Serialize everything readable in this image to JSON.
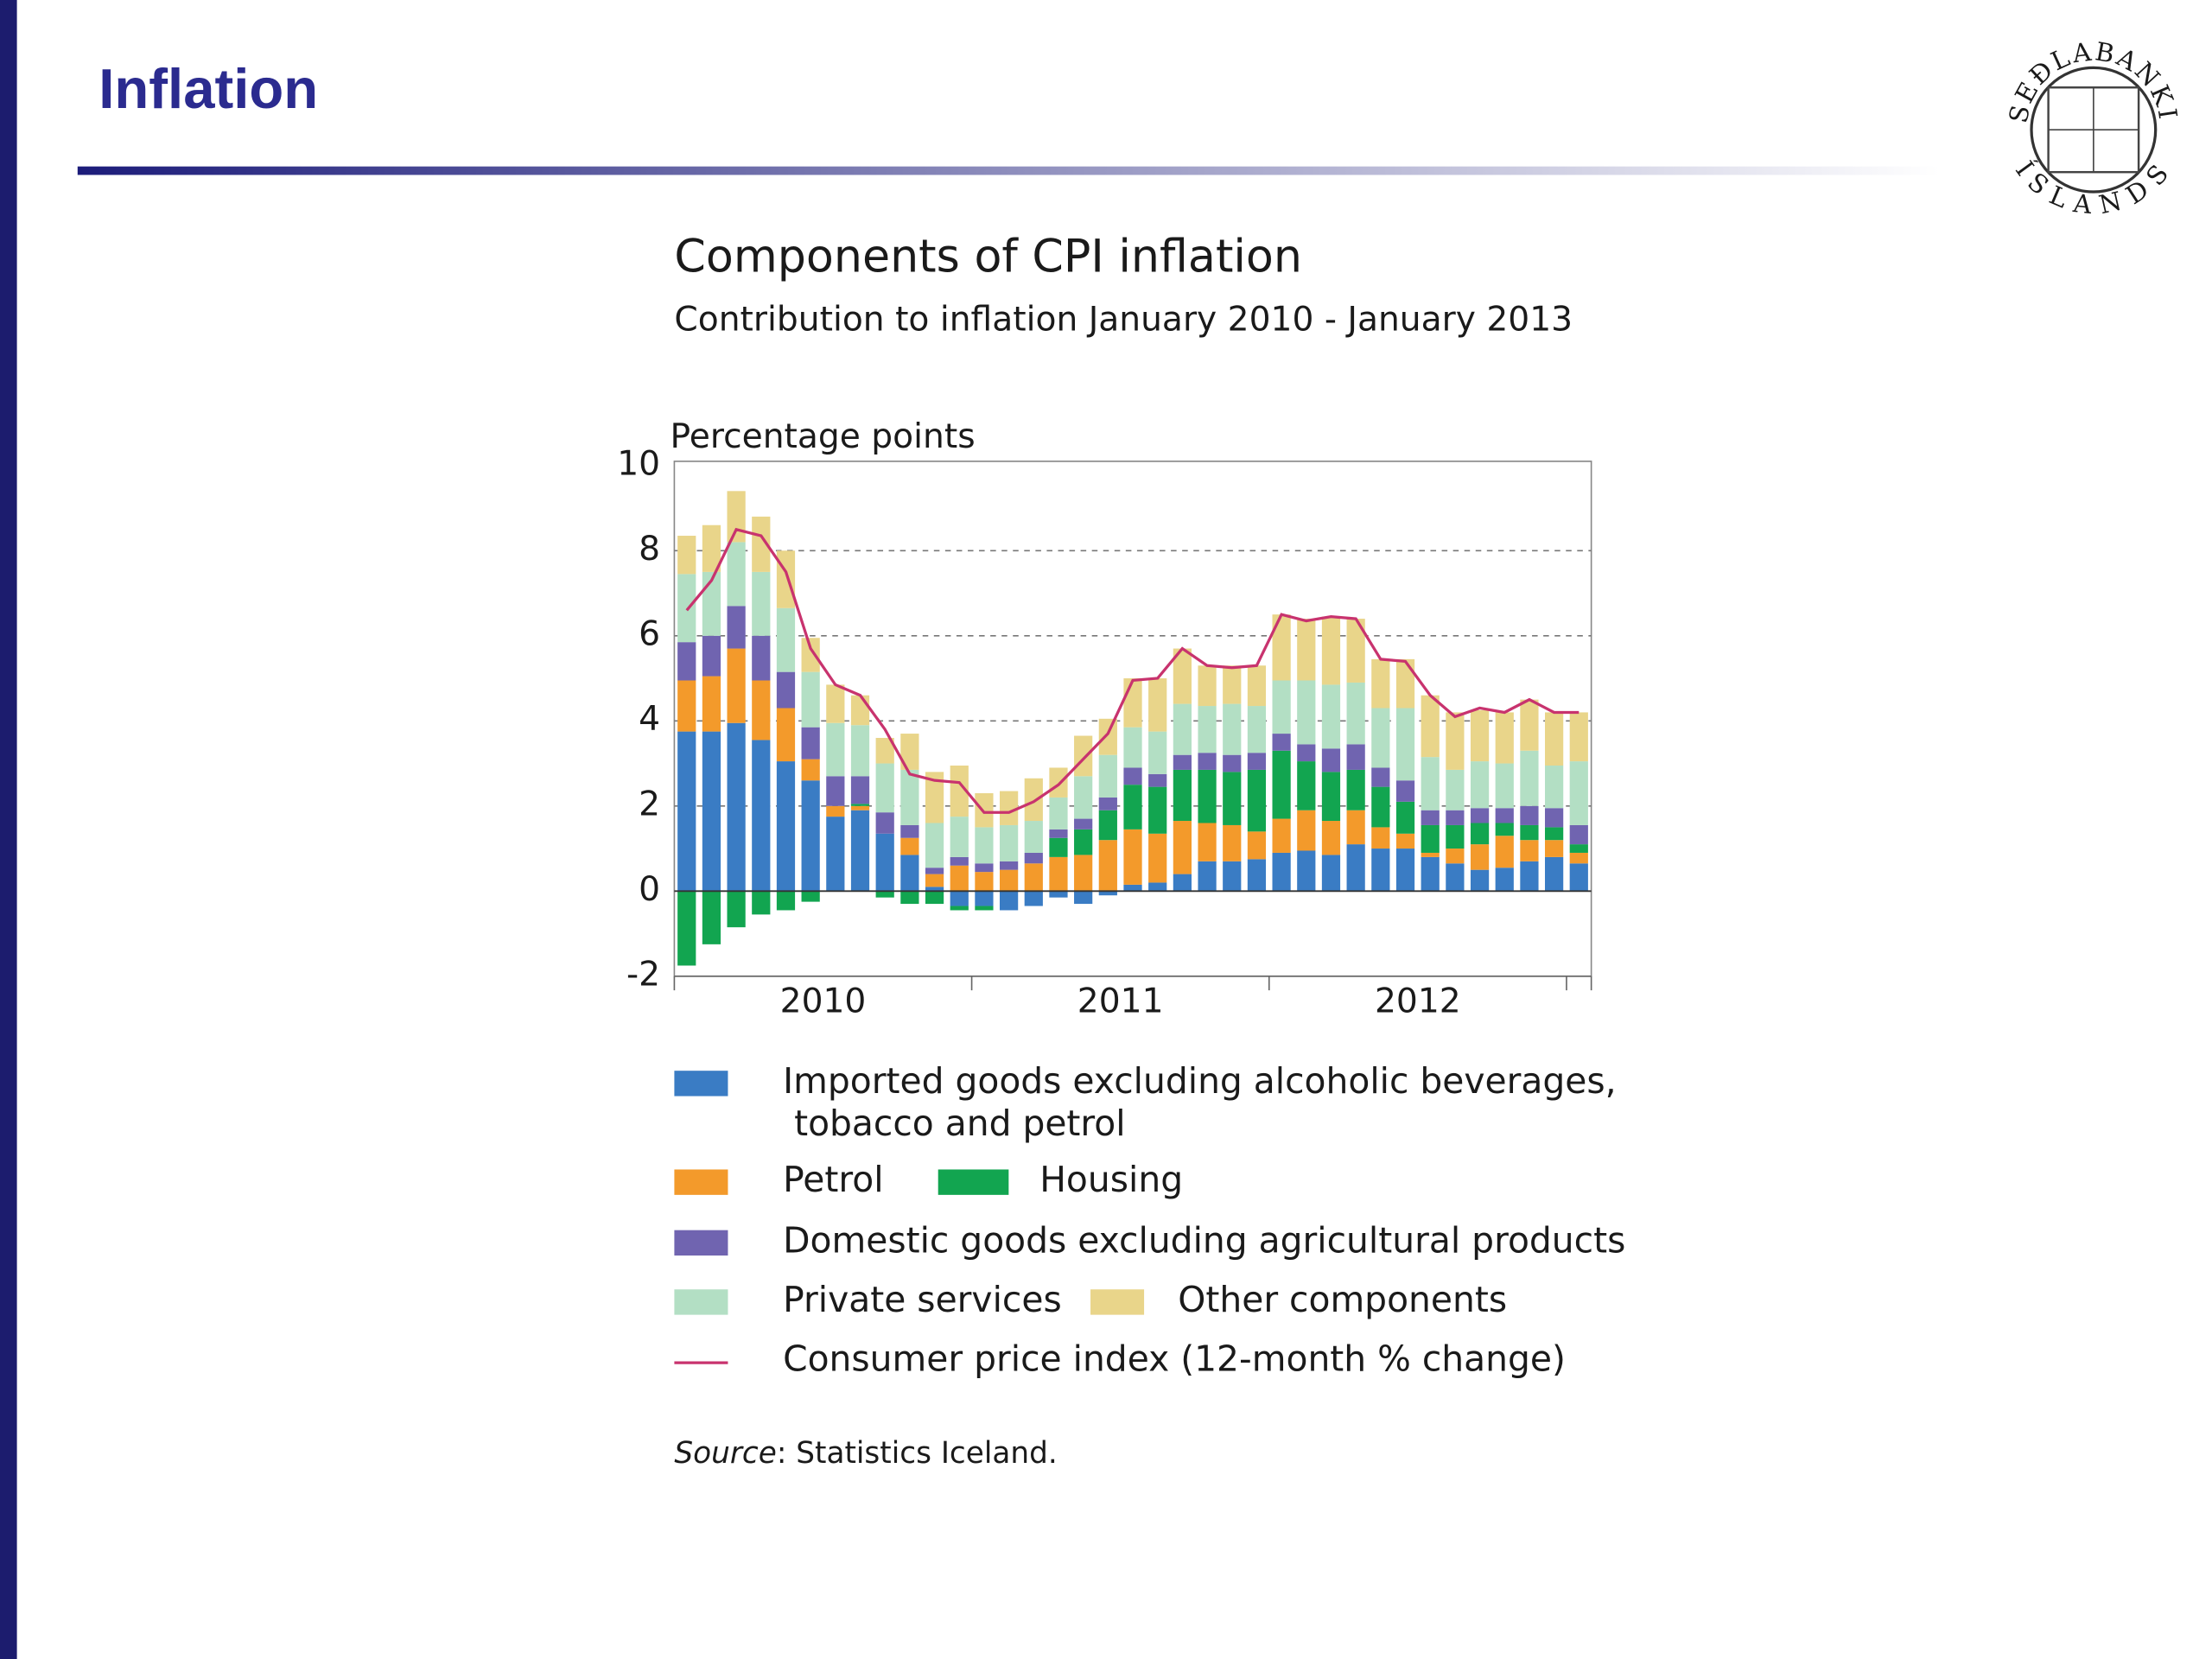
{
  "header": {
    "title": "Inflation",
    "logo_top": "SEÐLABANKI",
    "logo_bottom": "ÍSLANDS"
  },
  "chart_data": {
    "type": "bar",
    "stacked": true,
    "title": "Components of CPI inflation",
    "subtitle": "Contribution to inflation January 2010 - January 2013",
    "y_label": "Percentage points",
    "categories": [
      null,
      null,
      null,
      null,
      null,
      null,
      "2010",
      null,
      null,
      null,
      null,
      null,
      null,
      null,
      null,
      null,
      null,
      null,
      "2011",
      null,
      null,
      null,
      null,
      null,
      null,
      null,
      null,
      null,
      null,
      null,
      "2012",
      null,
      null,
      null,
      null,
      null,
      null
    ],
    "ylim": [
      -2,
      10
    ],
    "yticks": [
      -2,
      0,
      2,
      4,
      6,
      8,
      10
    ],
    "grid": true,
    "series": [
      {
        "name": "Imported goods excluding alcoholic beverages, tobacco and petrol",
        "color": "#3a7cc4",
        "values": [
          3.75,
          3.75,
          3.95,
          3.55,
          3.05,
          2.6,
          1.75,
          1.9,
          1.35,
          0.85,
          0.1,
          -0.35,
          -0.35,
          -0.45,
          -0.35,
          -0.15,
          -0.3,
          -0.1,
          0.15,
          0.2,
          0.4,
          0.7,
          0.7,
          0.75,
          0.9,
          0.95,
          0.85,
          1.1,
          1.0,
          1.0,
          0.8,
          0.65,
          0.5,
          0.55,
          0.7,
          0.8,
          0.65
        ]
      },
      {
        "name": "Petrol",
        "color": "#f39a2b",
        "values": [
          1.2,
          1.3,
          1.75,
          1.4,
          1.25,
          0.5,
          0.25,
          0.1,
          0.0,
          0.4,
          0.3,
          0.6,
          0.45,
          0.5,
          0.65,
          0.8,
          0.85,
          1.2,
          1.3,
          1.15,
          1.25,
          0.9,
          0.85,
          0.65,
          0.8,
          0.95,
          0.8,
          0.8,
          0.5,
          0.35,
          0.1,
          0.35,
          0.6,
          0.75,
          0.5,
          0.4,
          0.25
        ]
      },
      {
        "name": "Housing",
        "color": "#12a550",
        "values": [
          -1.75,
          -1.25,
          -0.85,
          -0.55,
          -0.45,
          -0.25,
          0,
          0.05,
          -0.15,
          -0.3,
          -0.3,
          -0.1,
          -0.1,
          0,
          0,
          0.45,
          0.6,
          0.7,
          1.05,
          1.1,
          1.2,
          1.25,
          1.25,
          1.45,
          1.6,
          1.15,
          1.15,
          0.95,
          0.95,
          0.75,
          0.65,
          0.55,
          0.5,
          0.3,
          0.35,
          0.3,
          0.2
        ]
      },
      {
        "name": "Domestic goods excluding agricultural products",
        "color": "#7064b0",
        "values": [
          0.9,
          0.95,
          1.0,
          1.05,
          0.85,
          0.75,
          0.7,
          0.65,
          0.5,
          0.3,
          0.15,
          0.2,
          0.2,
          0.2,
          0.25,
          0.2,
          0.25,
          0.3,
          0.4,
          0.3,
          0.35,
          0.4,
          0.4,
          0.4,
          0.4,
          0.4,
          0.55,
          0.6,
          0.45,
          0.5,
          0.35,
          0.35,
          0.35,
          0.35,
          0.45,
          0.45,
          0.45
        ]
      },
      {
        "name": "Private services",
        "color": "#b3dfc4",
        "values": [
          1.6,
          1.5,
          1.5,
          1.5,
          1.5,
          1.3,
          1.25,
          1.2,
          1.15,
          1.3,
          1.05,
          0.95,
          0.85,
          0.85,
          0.75,
          0.75,
          1.0,
          1.0,
          0.95,
          1.0,
          1.2,
          1.1,
          1.2,
          1.1,
          1.25,
          1.5,
          1.5,
          1.45,
          1.4,
          1.7,
          1.25,
          0.95,
          1.1,
          1.05,
          1.3,
          1.0,
          1.5
        ]
      },
      {
        "name": "Other components",
        "color": "#e9d58a",
        "values": [
          0.9,
          1.1,
          1.2,
          1.3,
          1.35,
          0.8,
          0.9,
          0.7,
          0.6,
          0.85,
          1.2,
          1.2,
          0.8,
          0.8,
          1.0,
          0.7,
          0.95,
          0.85,
          1.15,
          1.25,
          1.3,
          0.95,
          0.9,
          0.95,
          1.55,
          1.45,
          1.6,
          1.5,
          1.15,
          1.15,
          1.45,
          1.35,
          1.2,
          1.2,
          1.2,
          1.25,
          1.15
        ]
      }
    ],
    "line": {
      "name": "Consumer price index (12-month % change)",
      "color": "#c8336e",
      "values": [
        6.6,
        7.3,
        8.5,
        8.35,
        7.5,
        5.7,
        4.85,
        4.6,
        3.8,
        2.75,
        2.6,
        2.55,
        1.85,
        1.85,
        2.1,
        2.5,
        3.1,
        3.7,
        4.95,
        5.0,
        5.7,
        5.3,
        5.25,
        5.3,
        6.5,
        6.35,
        6.45,
        6.4,
        5.45,
        5.4,
        4.6,
        4.1,
        4.3,
        4.2,
        4.5,
        4.2,
        4.2
      ]
    },
    "source_label": "Source",
    "source_text": ": Statistics Iceland."
  }
}
